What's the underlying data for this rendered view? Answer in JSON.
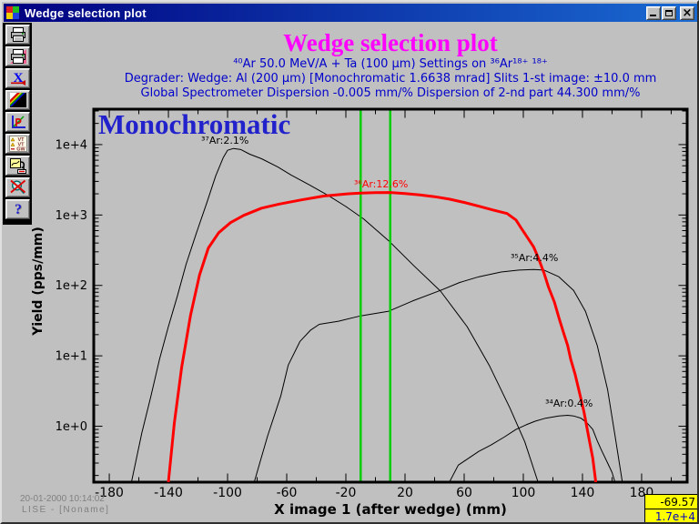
{
  "window": {
    "title": "Wedge selection plot",
    "close_glyph": "×"
  },
  "toolbar": {
    "icons": [
      {
        "name": "print"
      },
      {
        "name": "print-color"
      },
      {
        "name": "excel-export",
        "glyph": "X"
      },
      {
        "name": "color-palette"
      },
      {
        "name": "plot-style"
      },
      {
        "name": "set-vt-gw",
        "rows": [
          "VT",
          "VT",
          "GW"
        ]
      },
      {
        "name": "copy-plot-window"
      },
      {
        "name": "zoom-disabled"
      },
      {
        "name": "help",
        "glyph": "?"
      }
    ]
  },
  "header": {
    "title": "Wedge selection plot",
    "reaction": "⁴⁰Ar 50.0 MeV/A + Ta (100 μm)   Settings on ³⁶Ar¹⁸⁺ ¹⁸⁺",
    "degrader": "Degrader:    Wedge: Al (200 μm) [Monochromatic 1.6638 mrad] Slits 1-st image: ±10.0 mm",
    "dispersion": "Global Spectrometer Dispersion -0.005 mm/%   Dispersion of 2-nd part 44.300 mm/%"
  },
  "plot": {
    "mode_label": "Monochromatic"
  },
  "statusbar": {
    "datetime": "20-01-2000  10:14:02",
    "app": "LISE - [Noname]",
    "readout_x": "-69.57",
    "readout_y": "1.7e+4"
  },
  "colors": {
    "title": "#FF00FF",
    "header_text": "#0000CC",
    "mode_label": "#2222CC",
    "slit_lines": "#00CC00",
    "main_curve": "#FF0000",
    "readout_bg": "#FFFF00"
  },
  "chart_data": {
    "type": "line",
    "title": "Wedge selection plot",
    "xlabel": "X image 1 (after wedge) (mm)",
    "ylabel": "Yield (pps/mm)",
    "x_scale": "linear",
    "y_scale": "log",
    "xlim_mm": [
      -190.5,
      210.8
    ],
    "ylim_log10": [
      -0.794,
      4.503
    ],
    "x_ticks": [
      -180,
      -140,
      -100,
      -60,
      -20,
      20,
      60,
      100,
      140,
      180
    ],
    "x_minor_step": 20,
    "y_ticks": [
      {
        "v": 1,
        "label": "1e+0"
      },
      {
        "v": 10,
        "label": "1e+1"
      },
      {
        "v": 100,
        "label": "1e+2"
      },
      {
        "v": 1000,
        "label": "1e+3"
      },
      {
        "v": 10000,
        "label": "1e+4"
      }
    ],
    "slits": {
      "mm": [
        -10,
        10
      ],
      "color": "#00CC00"
    },
    "series": [
      {
        "name": "37Ar",
        "label": "³⁷Ar:2.1%",
        "percent": 2.1,
        "color": "#000000",
        "width": 1,
        "points": [
          [
            -165,
            0.16
          ],
          [
            -158,
            0.8
          ],
          [
            -152,
            2.6
          ],
          [
            -146,
            9
          ],
          [
            -140,
            26
          ],
          [
            -134,
            70
          ],
          [
            -128,
            200
          ],
          [
            -121,
            560
          ],
          [
            -114,
            1500
          ],
          [
            -108,
            3600
          ],
          [
            -103,
            6500
          ],
          [
            -100,
            8300
          ],
          [
            -96,
            8800
          ],
          [
            -91,
            8500
          ],
          [
            -85,
            7300
          ],
          [
            -77,
            6300
          ],
          [
            -66,
            4800
          ],
          [
            -57,
            3700
          ],
          [
            -45,
            2700
          ],
          [
            -32,
            1900
          ],
          [
            -20,
            1320
          ],
          [
            -8,
            880
          ],
          [
            9,
            430
          ],
          [
            26,
            190
          ],
          [
            44,
            83
          ],
          [
            62,
            26
          ],
          [
            77,
            7.3
          ],
          [
            91,
            1.8
          ],
          [
            101,
            0.6
          ],
          [
            110,
            0.16
          ]
        ]
      },
      {
        "name": "35Ar",
        "label": "³⁵Ar:4.4%",
        "percent": 4.4,
        "color": "#000000",
        "width": 1,
        "points": [
          [
            -82,
            0.16
          ],
          [
            -73,
            0.72
          ],
          [
            -64,
            2.7
          ],
          [
            -59,
            7.4
          ],
          [
            -51,
            16
          ],
          [
            -44,
            23
          ],
          [
            -38,
            28
          ],
          [
            -25,
            31
          ],
          [
            -10,
            37
          ],
          [
            9,
            43
          ],
          [
            25,
            60
          ],
          [
            44,
            85
          ],
          [
            57,
            110
          ],
          [
            70,
            133
          ],
          [
            85,
            155
          ],
          [
            97,
            165
          ],
          [
            107,
            168
          ],
          [
            114,
            165
          ],
          [
            124,
            133
          ],
          [
            134,
            85
          ],
          [
            142,
            43
          ],
          [
            150,
            14
          ],
          [
            157,
            3.3
          ],
          [
            162,
            0.74
          ],
          [
            167,
            0.16
          ]
        ]
      },
      {
        "name": "34Ar",
        "label": "³⁴Ar:0.4%",
        "percent": 0.4,
        "color": "#000000",
        "width": 1,
        "points": [
          [
            50,
            0.16
          ],
          [
            56,
            0.28
          ],
          [
            62,
            0.34
          ],
          [
            70,
            0.44
          ],
          [
            78,
            0.54
          ],
          [
            87,
            0.7
          ],
          [
            95,
            0.9
          ],
          [
            102,
            1.05
          ],
          [
            108,
            1.18
          ],
          [
            115,
            1.3
          ],
          [
            124,
            1.4
          ],
          [
            130,
            1.43
          ],
          [
            134,
            1.4
          ],
          [
            139,
            1.3
          ],
          [
            143,
            1.12
          ],
          [
            147,
            0.9
          ],
          [
            150,
            0.62
          ],
          [
            153,
            0.45
          ],
          [
            157,
            0.3
          ],
          [
            160,
            0.22
          ],
          [
            162,
            0.16
          ]
        ]
      },
      {
        "name": "36Ar",
        "label": "³⁶Ar:12.6%",
        "percent": 12.6,
        "color": "#FF0000",
        "width": 3,
        "on_top": true,
        "points": [
          [
            -140,
            0.16
          ],
          [
            -136,
            1.1
          ],
          [
            -131,
            7
          ],
          [
            -125,
            38
          ],
          [
            -119,
            140
          ],
          [
            -113,
            340
          ],
          [
            -106,
            560
          ],
          [
            -98,
            780
          ],
          [
            -89,
            990
          ],
          [
            -77,
            1250
          ],
          [
            -65,
            1430
          ],
          [
            -50,
            1640
          ],
          [
            -35,
            1860
          ],
          [
            -20,
            1990
          ],
          [
            -10,
            2050
          ],
          [
            0,
            2080
          ],
          [
            10,
            2090
          ],
          [
            20,
            2020
          ],
          [
            30,
            1930
          ],
          [
            40,
            1820
          ],
          [
            50,
            1680
          ],
          [
            60,
            1510
          ],
          [
            70,
            1330
          ],
          [
            80,
            1170
          ],
          [
            89,
            1050
          ],
          [
            95,
            850
          ],
          [
            99,
            630
          ],
          [
            103,
            470
          ],
          [
            107,
            350
          ],
          [
            110,
            250
          ],
          [
            114,
            150
          ],
          [
            117,
            95
          ],
          [
            121,
            58
          ],
          [
            124,
            35
          ],
          [
            127,
            22
          ],
          [
            130,
            14
          ],
          [
            132,
            9
          ],
          [
            135,
            5.5
          ],
          [
            138,
            3
          ],
          [
            141,
            1.6
          ],
          [
            144,
            0.74
          ],
          [
            147,
            0.35
          ],
          [
            149,
            0.16
          ]
        ]
      }
    ]
  }
}
